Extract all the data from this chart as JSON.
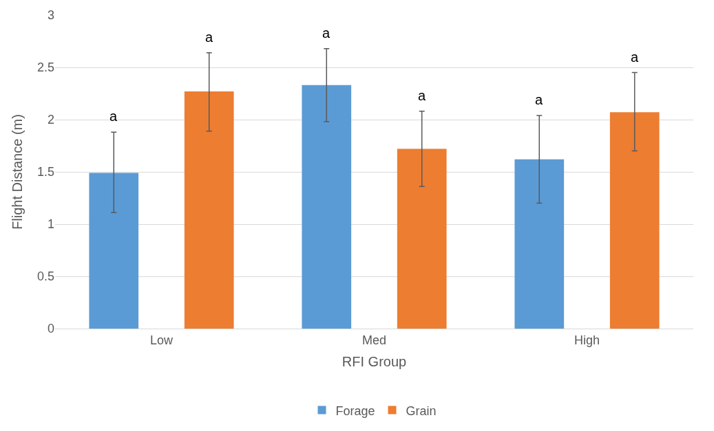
{
  "chart_data": {
    "type": "bar",
    "xlabel": "RFI Group",
    "ylabel": "Flight Distance (m)",
    "categories": [
      "Low",
      "Med",
      "High"
    ],
    "series": [
      {
        "name": "Forage",
        "color": "#5b9bd5",
        "values": [
          1.49,
          2.33,
          1.62
        ],
        "errors": [
          [
            1.11,
            1.88
          ],
          [
            1.98,
            2.68
          ],
          [
            1.2,
            2.04
          ]
        ]
      },
      {
        "name": "Grain",
        "color": "#ed7d31",
        "values": [
          2.27,
          1.72,
          2.07
        ],
        "errors": [
          [
            1.89,
            2.64
          ],
          [
            1.36,
            2.08
          ],
          [
            1.7,
            2.45
          ]
        ]
      }
    ],
    "annotations": [
      "a",
      "a",
      "a",
      "a",
      "a",
      "a"
    ],
    "ylim": [
      0,
      3
    ],
    "yticks": [
      0,
      0.5,
      1,
      1.5,
      2,
      2.5,
      3
    ],
    "grid": "y",
    "legend": "bottom"
  }
}
